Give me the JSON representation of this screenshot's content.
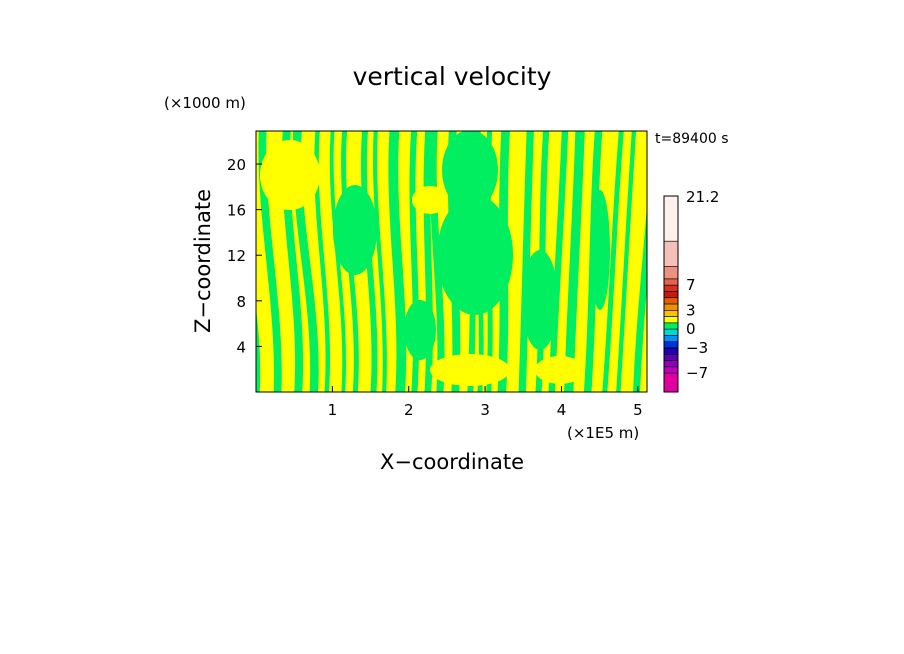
{
  "chart_data": {
    "type": "heatmap",
    "title": "vertical velocity",
    "xlabel": "X−coordinate",
    "ylabel": "Z−coordinate",
    "x_unit": "(×1E5 m)",
    "y_unit": "(×1000 m)",
    "time_label": "t=89400 s",
    "xlim": [
      0,
      5.12
    ],
    "ylim": [
      0,
      22.9
    ],
    "x_ticks": [
      1,
      2,
      3,
      4,
      5
    ],
    "x_tick_labels": [
      "1",
      "2",
      "3",
      "4",
      "5"
    ],
    "y_ticks": [
      4,
      8,
      12,
      16,
      20
    ],
    "y_tick_labels": [
      "4",
      "8",
      "12",
      "16",
      "20"
    ],
    "colorbar": {
      "max_label": "21.2",
      "tick_values": [
        21.2,
        7,
        3,
        0,
        -3,
        -7
      ],
      "tick_labels": [
        "21.2",
        "7",
        "3",
        "0",
        "−3",
        "−7"
      ],
      "levels": [
        {
          "from": 14,
          "to": 21.2,
          "color": "#fff0ee"
        },
        {
          "from": 10,
          "to": 14,
          "color": "#f4c0b8"
        },
        {
          "from": 8,
          "to": 10,
          "color": "#ec9080"
        },
        {
          "from": 7,
          "to": 8,
          "color": "#e56050"
        },
        {
          "from": 6,
          "to": 7,
          "color": "#d83020"
        },
        {
          "from": 5,
          "to": 6,
          "color": "#c81810"
        },
        {
          "from": 4,
          "to": 5,
          "color": "#e06000"
        },
        {
          "from": 3,
          "to": 4,
          "color": "#f09000"
        },
        {
          "from": 2,
          "to": 3,
          "color": "#ffc000"
        },
        {
          "from": 1,
          "to": 2,
          "color": "#ffff00"
        },
        {
          "from": 0,
          "to": 1,
          "color": "#00ee60"
        },
        {
          "from": -1,
          "to": 0,
          "color": "#00d8d8"
        },
        {
          "from": -2,
          "to": -1,
          "color": "#0090ff"
        },
        {
          "from": -3,
          "to": -2,
          "color": "#0030e0"
        },
        {
          "from": -4,
          "to": -3,
          "color": "#2000b0"
        },
        {
          "from": -5,
          "to": -4,
          "color": "#6000b0"
        },
        {
          "from": -6,
          "to": -5,
          "color": "#9000c0"
        },
        {
          "from": -7,
          "to": -6,
          "color": "#c000c0"
        },
        {
          "from": -10,
          "to": -7,
          "color": "#e000a0"
        }
      ]
    },
    "field_colors": {
      "positive": "#ffff00",
      "negative": "#00ee60"
    },
    "grid": false
  }
}
